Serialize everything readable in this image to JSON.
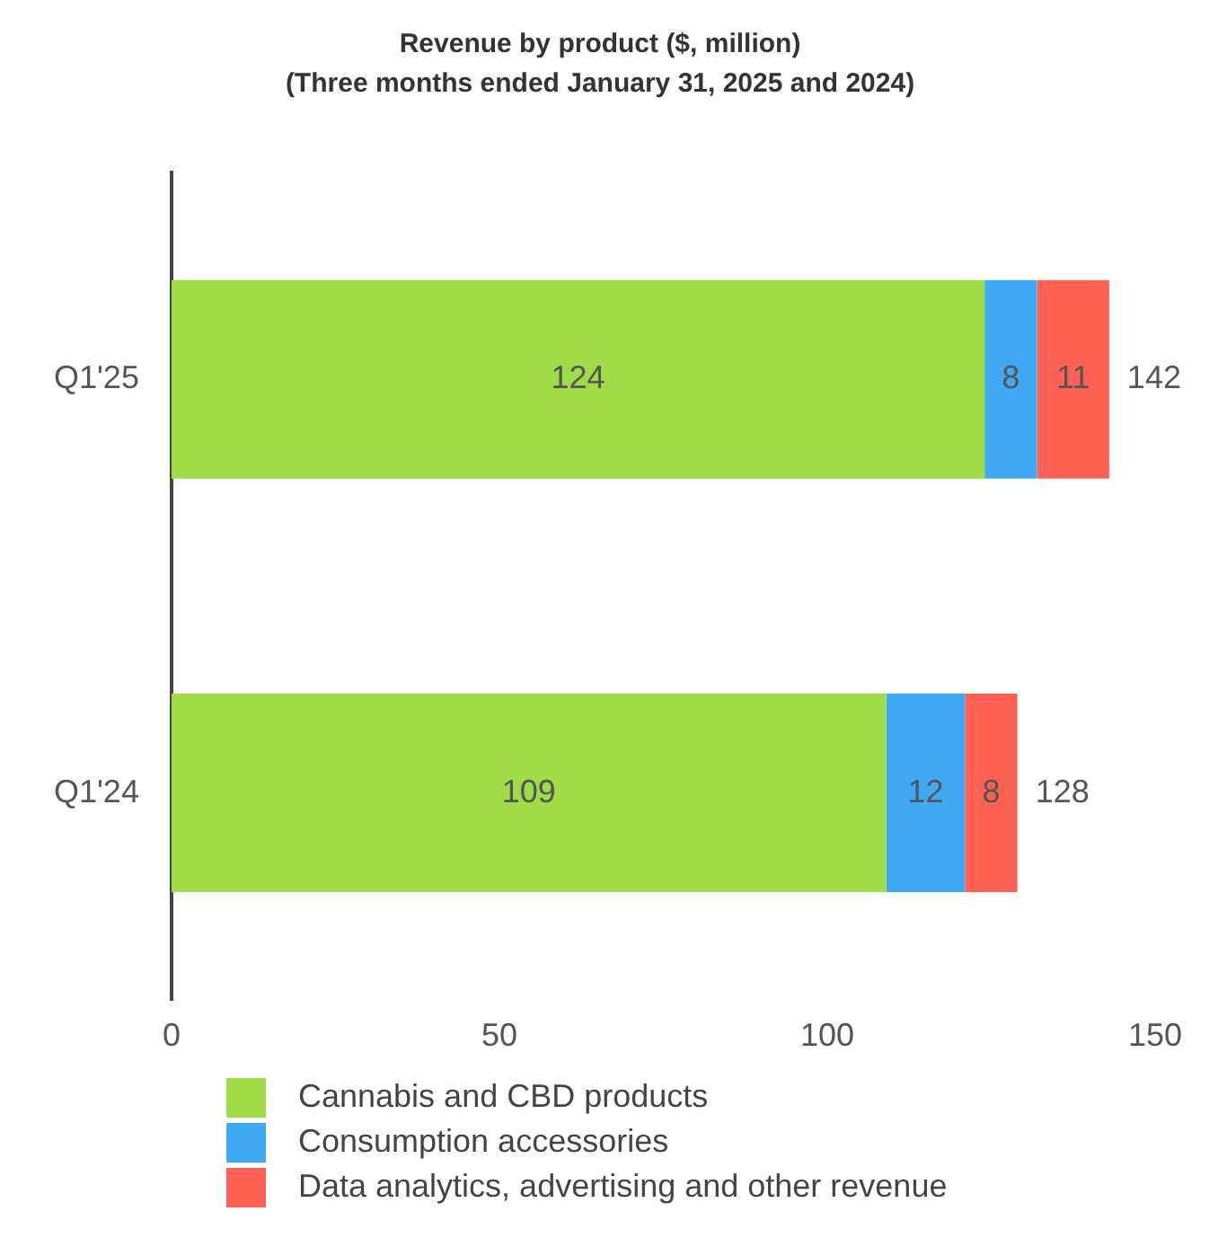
{
  "chart_data": {
    "type": "bar",
    "orientation": "horizontal",
    "stacked": true,
    "title": "Revenue by product ($, million)",
    "subtitle": "(Three months ended January 31, 2025 and 2024)",
    "categories": [
      "Q1'25",
      "Q1'24"
    ],
    "series": [
      {
        "name": "Cannabis and CBD products",
        "color": "#9edd48",
        "values": [
          124,
          109
        ]
      },
      {
        "name": "Consumption accessories",
        "color": "#3fa9f5",
        "values": [
          8,
          12
        ]
      },
      {
        "name": "Data analytics, advertising and other revenue",
        "color": "#ff6155",
        "values": [
          11,
          8
        ]
      }
    ],
    "totals": [
      "142",
      "128"
    ],
    "data_labels": true,
    "xlim": [
      0,
      150
    ],
    "xticks": [
      0,
      50,
      100,
      150
    ],
    "grid": false,
    "legend": "bottom"
  }
}
